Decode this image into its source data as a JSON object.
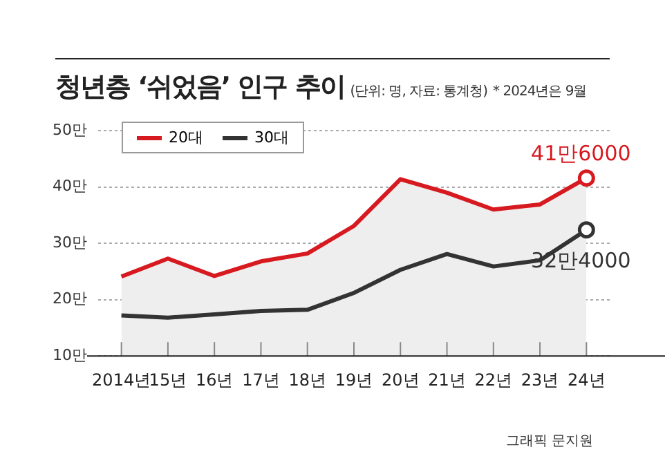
{
  "chart_data": {
    "type": "line",
    "title": "청년층 ‘쉬었음’ 인구 추이",
    "subtitle": "(단위: 명, 자료: 통계청)",
    "annotations": [
      "* 2024년은 9월",
      "그래픽 문지원",
      {
        "text": "41만6000",
        "x": "24년",
        "y": 41.6
      },
      {
        "text": "32만4000",
        "x": "24년",
        "y": 32.4
      }
    ],
    "categories": [
      "2014년",
      "15년",
      "16년",
      "17년",
      "18년",
      "19년",
      "20년",
      "21년",
      "22년",
      "23년",
      "24년"
    ],
    "series": [
      {
        "name": "20대",
        "type": "area",
        "color": "#d71920",
        "values": [
          24.1,
          27.3,
          24.2,
          26.8,
          28.2,
          33.1,
          41.4,
          39.0,
          36.0,
          36.9,
          41.6
        ]
      },
      {
        "name": "30대",
        "color": "#333333",
        "values": [
          17.2,
          16.8,
          17.4,
          18.0,
          18.2,
          21.2,
          25.3,
          28.1,
          25.9,
          27.0,
          32.4
        ]
      }
    ],
    "ylim": [
      10,
      50
    ],
    "yticks": [
      {
        "value": 10,
        "label": "10만"
      },
      {
        "value": 20,
        "label": "20만"
      },
      {
        "value": 30,
        "label": "30만"
      },
      {
        "value": 40,
        "label": "40만"
      },
      {
        "value": 50,
        "label": "50만"
      }
    ],
    "grid": "y",
    "legend": "top left",
    "marker": "none"
  }
}
